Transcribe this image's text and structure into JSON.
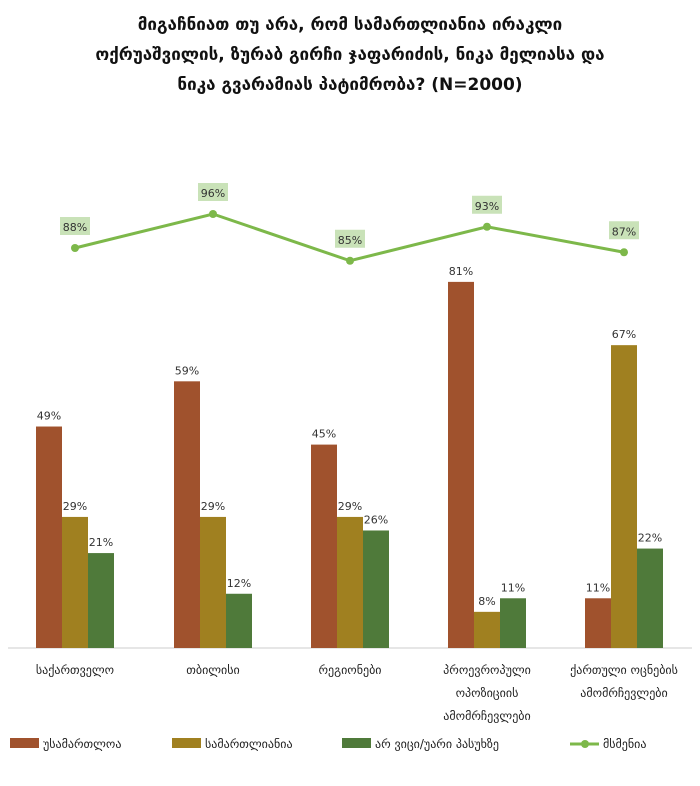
{
  "chart_data": {
    "type": "bar",
    "title": "მიგაჩნიათ თუ არა, რომ სამართლიანია ირაკლი ოქრუაშვილის, ზურაბ გირჩი ჯაფარიძის, ნიკა მელიასა და ნიკა გვარამიას პატიმრობა? (N=2000)",
    "categories": [
      [
        "საქართველო"
      ],
      [
        "თბილისი"
      ],
      [
        "რეგიონები"
      ],
      [
        "პროევროპული",
        "ოპოზიციის",
        "ამომრჩევლები"
      ],
      [
        "ქართული ოცნების",
        "ამომრჩევლები"
      ]
    ],
    "series": [
      {
        "name": "უსამართლოა",
        "type": "bar",
        "color": "#A0522D",
        "values": [
          49,
          59,
          45,
          81,
          11
        ]
      },
      {
        "name": "სამართლიანია",
        "type": "bar",
        "color": "#A08020",
        "values": [
          29,
          29,
          29,
          8,
          67
        ]
      },
      {
        "name": "არ ვიცი/უარი პასუხზე",
        "type": "bar",
        "color": "#4F7A3A",
        "values": [
          21,
          12,
          26,
          11,
          22
        ]
      },
      {
        "name": "მსმენია",
        "type": "line",
        "color": "#7DB84A",
        "values": [
          88,
          96,
          85,
          93,
          87
        ]
      }
    ],
    "value_suffix": "%",
    "legend_position": "bottom",
    "grid": false
  }
}
